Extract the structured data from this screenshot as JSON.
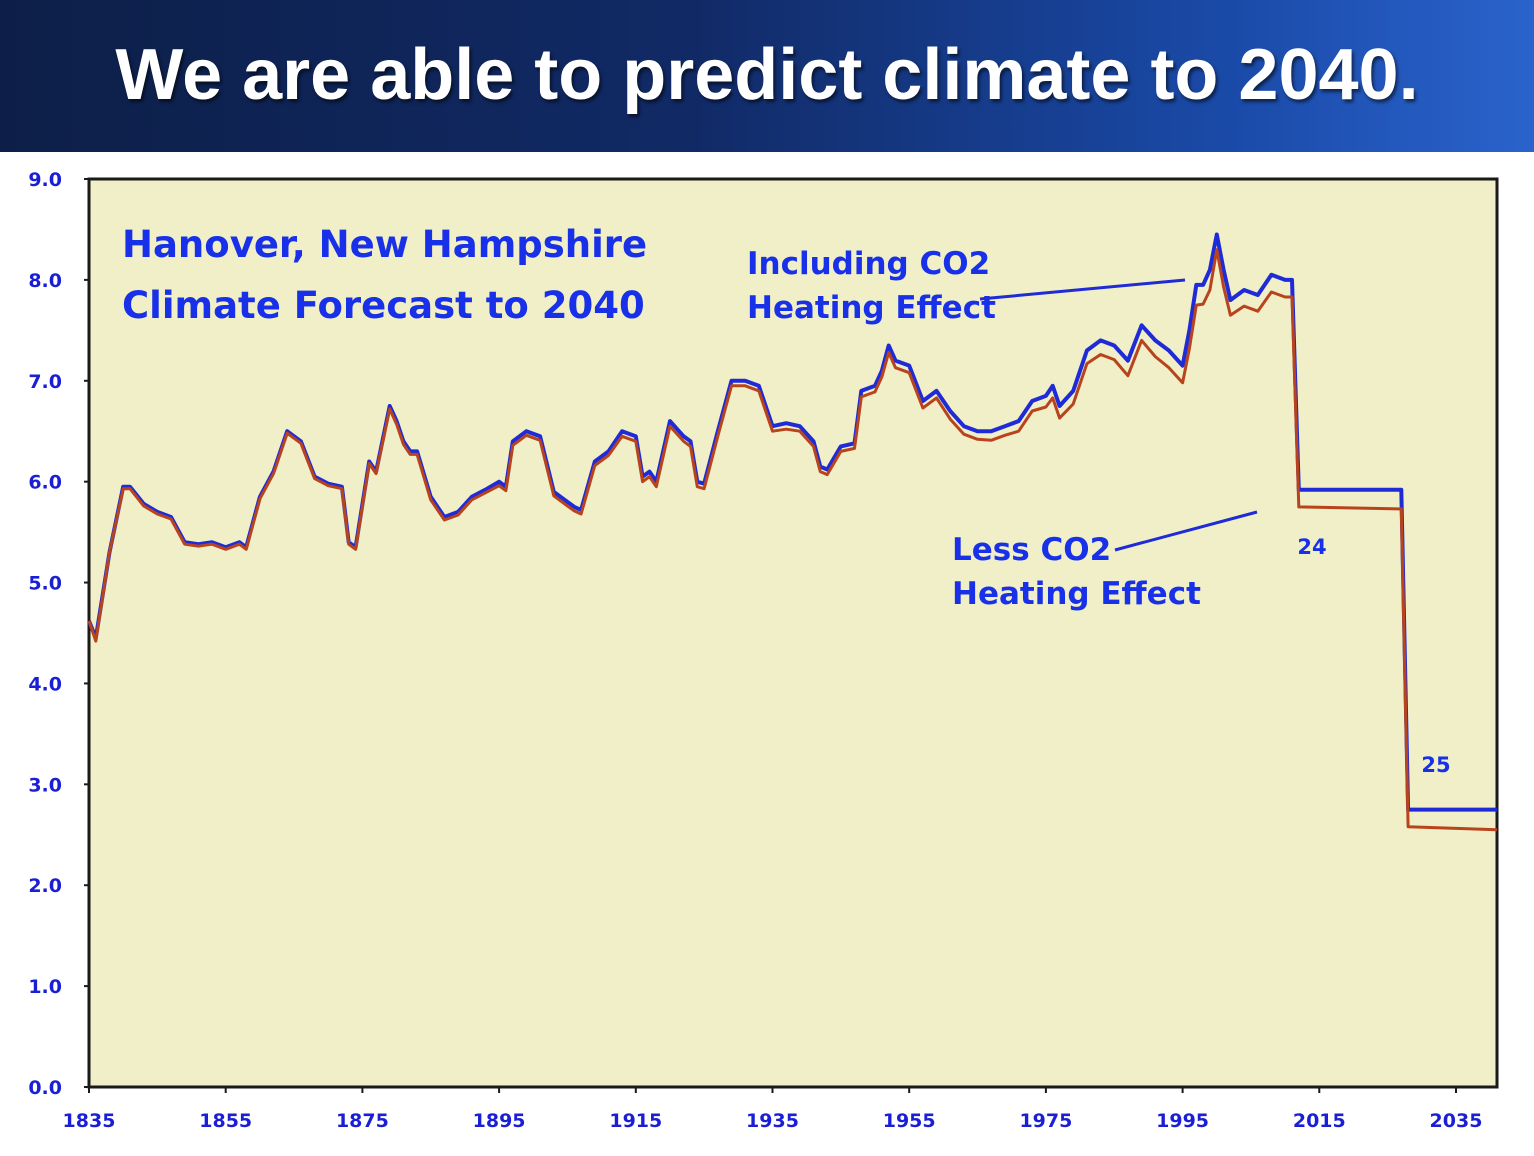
{
  "slide": {
    "title": "We are able to predict climate to 2040."
  },
  "colors": {
    "plot_bg": "#f0efc8",
    "with_co2": "#1f2bd6",
    "less_co2": "#b8441e",
    "text_blue": "#1a1fd6"
  },
  "chart_data": {
    "type": "line",
    "title": "Hanover, New Hampshire",
    "subtitle": "Climate Forecast to 2040",
    "xlabel": "",
    "ylabel": "",
    "xlim": [
      1835,
      2041
    ],
    "ylim": [
      0,
      9
    ],
    "grid": false,
    "yticks": [
      "0.0",
      "1.0",
      "2.0",
      "3.0",
      "4.0",
      "5.0",
      "6.0",
      "7.0",
      "8.0",
      "9.0"
    ],
    "xticks": [
      "1835",
      "1855",
      "1875",
      "1895",
      "1915",
      "1935",
      "1955",
      "1975",
      "1995",
      "2015",
      "2035"
    ],
    "series": [
      {
        "name": "Including CO2 Heating Effect",
        "color": "#1f2bd6",
        "points": [
          [
            1835,
            4.62
          ],
          [
            1836,
            4.45
          ],
          [
            1838,
            5.3
          ],
          [
            1840,
            5.95
          ],
          [
            1841,
            5.95
          ],
          [
            1843,
            5.78
          ],
          [
            1845,
            5.7
          ],
          [
            1847,
            5.65
          ],
          [
            1849,
            5.4
          ],
          [
            1851,
            5.38
          ],
          [
            1853,
            5.4
          ],
          [
            1855,
            5.35
          ],
          [
            1857,
            5.4
          ],
          [
            1858,
            5.35
          ],
          [
            1860,
            5.85
          ],
          [
            1862,
            6.1
          ],
          [
            1864,
            6.5
          ],
          [
            1866,
            6.4
          ],
          [
            1868,
            6.05
          ],
          [
            1870,
            5.98
          ],
          [
            1872,
            5.95
          ],
          [
            1873,
            5.4
          ],
          [
            1874,
            5.35
          ],
          [
            1876,
            6.2
          ],
          [
            1877,
            6.1
          ],
          [
            1879,
            6.75
          ],
          [
            1880,
            6.6
          ],
          [
            1881,
            6.4
          ],
          [
            1882,
            6.3
          ],
          [
            1883,
            6.3
          ],
          [
            1885,
            5.85
          ],
          [
            1887,
            5.65
          ],
          [
            1889,
            5.7
          ],
          [
            1891,
            5.85
          ],
          [
            1893,
            5.92
          ],
          [
            1895,
            6.0
          ],
          [
            1896,
            5.95
          ],
          [
            1897,
            6.4
          ],
          [
            1899,
            6.5
          ],
          [
            1901,
            6.45
          ],
          [
            1903,
            5.9
          ],
          [
            1905,
            5.8
          ],
          [
            1906,
            5.75
          ],
          [
            1907,
            5.72
          ],
          [
            1909,
            6.2
          ],
          [
            1911,
            6.3
          ],
          [
            1913,
            6.5
          ],
          [
            1915,
            6.45
          ],
          [
            1916,
            6.05
          ],
          [
            1917,
            6.1
          ],
          [
            1918,
            6.0
          ],
          [
            1920,
            6.6
          ],
          [
            1922,
            6.45
          ],
          [
            1923,
            6.4
          ],
          [
            1924,
            6.0
          ],
          [
            1925,
            5.98
          ],
          [
            1927,
            6.5
          ],
          [
            1929,
            7.0
          ],
          [
            1931,
            7.0
          ],
          [
            1933,
            6.95
          ],
          [
            1935,
            6.55
          ],
          [
            1937,
            6.58
          ],
          [
            1939,
            6.55
          ],
          [
            1941,
            6.4
          ],
          [
            1942,
            6.15
          ],
          [
            1943,
            6.12
          ],
          [
            1945,
            6.35
          ],
          [
            1947,
            6.38
          ],
          [
            1948,
            6.9
          ],
          [
            1950,
            6.95
          ],
          [
            1951,
            7.1
          ],
          [
            1952,
            7.35
          ],
          [
            1953,
            7.2
          ],
          [
            1955,
            7.15
          ],
          [
            1957,
            6.8
          ],
          [
            1959,
            6.9
          ],
          [
            1961,
            6.7
          ],
          [
            1963,
            6.55
          ],
          [
            1965,
            6.5
          ],
          [
            1967,
            6.5
          ],
          [
            1969,
            6.55
          ],
          [
            1971,
            6.6
          ],
          [
            1973,
            6.8
          ],
          [
            1975,
            6.85
          ],
          [
            1976,
            6.95
          ],
          [
            1977,
            6.75
          ],
          [
            1979,
            6.9
          ],
          [
            1981,
            7.3
          ],
          [
            1983,
            7.4
          ],
          [
            1985,
            7.35
          ],
          [
            1987,
            7.2
          ],
          [
            1989,
            7.55
          ],
          [
            1991,
            7.4
          ],
          [
            1993,
            7.3
          ],
          [
            1995,
            7.15
          ],
          [
            1996,
            7.5
          ],
          [
            1997,
            7.95
          ],
          [
            1998,
            7.95
          ],
          [
            1999,
            8.1
          ],
          [
            2000,
            8.45
          ],
          [
            2001,
            8.1
          ],
          [
            2002,
            7.8
          ],
          [
            2004,
            7.9
          ],
          [
            2006,
            7.85
          ],
          [
            2008,
            8.05
          ],
          [
            2010,
            8.0
          ],
          [
            2011,
            8.0
          ],
          [
            2012,
            5.92
          ],
          [
            2027,
            5.92
          ],
          [
            2028,
            2.75
          ],
          [
            2041,
            2.75
          ]
        ]
      },
      {
        "name": "Less CO2 Heating Effect",
        "color": "#b8441e",
        "points": [
          [
            1835,
            4.62
          ],
          [
            1836,
            4.42
          ],
          [
            1838,
            5.3
          ],
          [
            1840,
            5.93
          ],
          [
            1841,
            5.93
          ],
          [
            1843,
            5.76
          ],
          [
            1845,
            5.68
          ],
          [
            1847,
            5.63
          ],
          [
            1849,
            5.38
          ],
          [
            1851,
            5.36
          ],
          [
            1853,
            5.38
          ],
          [
            1855,
            5.33
          ],
          [
            1857,
            5.38
          ],
          [
            1858,
            5.33
          ],
          [
            1860,
            5.83
          ],
          [
            1862,
            6.08
          ],
          [
            1864,
            6.48
          ],
          [
            1866,
            6.38
          ],
          [
            1868,
            6.03
          ],
          [
            1870,
            5.96
          ],
          [
            1872,
            5.93
          ],
          [
            1873,
            5.38
          ],
          [
            1874,
            5.33
          ],
          [
            1876,
            6.18
          ],
          [
            1877,
            6.08
          ],
          [
            1879,
            6.72
          ],
          [
            1880,
            6.57
          ],
          [
            1881,
            6.37
          ],
          [
            1882,
            6.27
          ],
          [
            1883,
            6.27
          ],
          [
            1885,
            5.82
          ],
          [
            1887,
            5.62
          ],
          [
            1889,
            5.67
          ],
          [
            1891,
            5.82
          ],
          [
            1893,
            5.89
          ],
          [
            1895,
            5.96
          ],
          [
            1896,
            5.91
          ],
          [
            1897,
            6.36
          ],
          [
            1899,
            6.46
          ],
          [
            1901,
            6.41
          ],
          [
            1903,
            5.86
          ],
          [
            1905,
            5.76
          ],
          [
            1906,
            5.71
          ],
          [
            1907,
            5.68
          ],
          [
            1909,
            6.16
          ],
          [
            1911,
            6.26
          ],
          [
            1913,
            6.45
          ],
          [
            1915,
            6.4
          ],
          [
            1916,
            6.0
          ],
          [
            1917,
            6.05
          ],
          [
            1918,
            5.95
          ],
          [
            1920,
            6.55
          ],
          [
            1922,
            6.4
          ],
          [
            1923,
            6.35
          ],
          [
            1924,
            5.95
          ],
          [
            1925,
            5.93
          ],
          [
            1927,
            6.45
          ],
          [
            1929,
            6.95
          ],
          [
            1931,
            6.95
          ],
          [
            1933,
            6.9
          ],
          [
            1935,
            6.5
          ],
          [
            1937,
            6.52
          ],
          [
            1939,
            6.5
          ],
          [
            1941,
            6.35
          ],
          [
            1942,
            6.1
          ],
          [
            1943,
            6.07
          ],
          [
            1945,
            6.3
          ],
          [
            1947,
            6.33
          ],
          [
            1948,
            6.84
          ],
          [
            1950,
            6.89
          ],
          [
            1951,
            7.04
          ],
          [
            1952,
            7.28
          ],
          [
            1953,
            7.13
          ],
          [
            1955,
            7.08
          ],
          [
            1957,
            6.73
          ],
          [
            1959,
            6.83
          ],
          [
            1961,
            6.62
          ],
          [
            1963,
            6.47
          ],
          [
            1965,
            6.42
          ],
          [
            1967,
            6.41
          ],
          [
            1969,
            6.46
          ],
          [
            1971,
            6.5
          ],
          [
            1973,
            6.7
          ],
          [
            1975,
            6.74
          ],
          [
            1976,
            6.83
          ],
          [
            1977,
            6.63
          ],
          [
            1979,
            6.77
          ],
          [
            1981,
            7.17
          ],
          [
            1983,
            7.26
          ],
          [
            1985,
            7.21
          ],
          [
            1987,
            7.05
          ],
          [
            1989,
            7.4
          ],
          [
            1991,
            7.24
          ],
          [
            1993,
            7.13
          ],
          [
            1995,
            6.98
          ],
          [
            1996,
            7.32
          ],
          [
            1997,
            7.75
          ],
          [
            1998,
            7.76
          ],
          [
            1999,
            7.9
          ],
          [
            2000,
            8.3
          ],
          [
            2001,
            7.93
          ],
          [
            2002,
            7.65
          ],
          [
            2004,
            7.74
          ],
          [
            2006,
            7.69
          ],
          [
            2008,
            7.88
          ],
          [
            2010,
            7.83
          ],
          [
            2011,
            7.83
          ],
          [
            2012,
            5.75
          ],
          [
            2027,
            5.73
          ],
          [
            2028,
            2.58
          ],
          [
            2041,
            2.55
          ]
        ]
      }
    ],
    "annotations": [
      {
        "id": "with",
        "lines": [
          "Including CO2",
          "Heating Effect"
        ]
      },
      {
        "id": "less",
        "lines": [
          "Less CO2",
          "Heating Effect"
        ]
      },
      {
        "id": "label24",
        "text": "24"
      },
      {
        "id": "label25",
        "text": "25"
      }
    ]
  }
}
